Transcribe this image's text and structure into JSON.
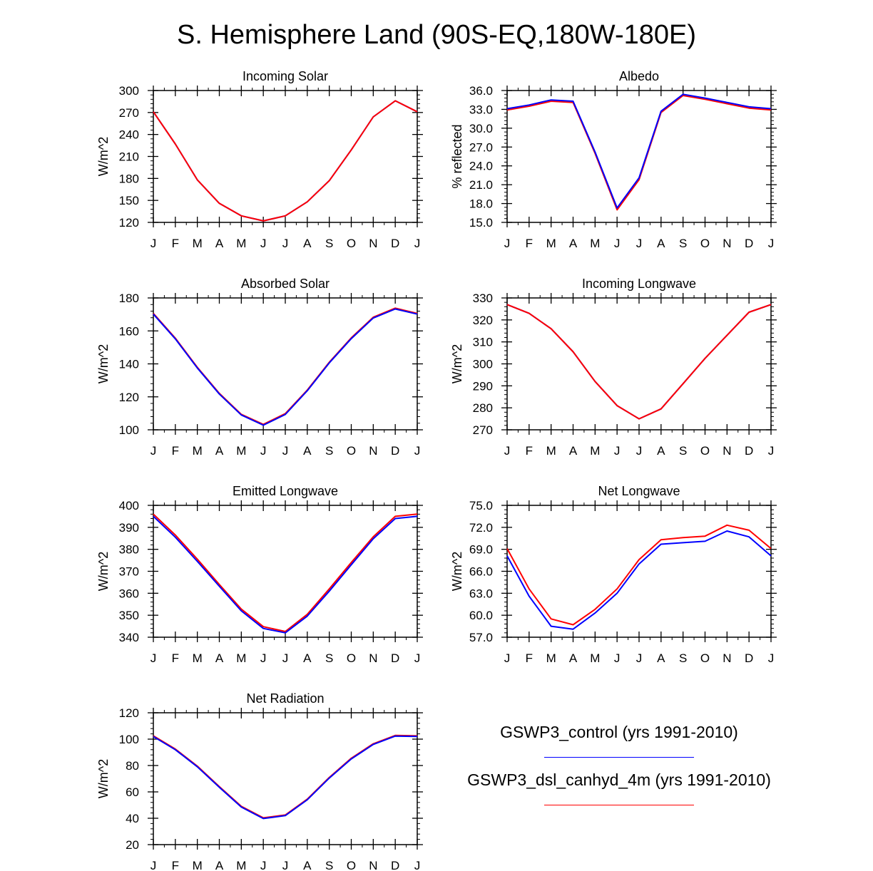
{
  "title": "S. Hemisphere Land (90S-EQ,180W-180E)",
  "colors": {
    "control": "#0000ff",
    "dsl": "#ff0000",
    "axis": "#000000"
  },
  "legend": [
    {
      "label": "GSWP3_control (yrs 1991-2010)",
      "color": "#0000ff"
    },
    {
      "label": "GSWP3_dsl_canhyd_4m (yrs 1991-2010)",
      "color": "#ff0000"
    }
  ],
  "chart_data": [
    {
      "type": "line",
      "title": "Incoming Solar",
      "ylabel": "W/m^2",
      "categories": [
        "J",
        "F",
        "M",
        "A",
        "M",
        "J",
        "J",
        "A",
        "S",
        "O",
        "N",
        "D",
        "J"
      ],
      "ylim": [
        120,
        300
      ],
      "yticks": [
        "120",
        "150",
        "180",
        "210",
        "240",
        "270",
        "300"
      ],
      "series": [
        {
          "name": "GSWP3_control",
          "color": "#0000ff",
          "values": [
            271,
            227,
            178,
            146,
            129,
            122,
            129,
            148,
            177,
            219,
            264,
            286,
            271
          ]
        },
        {
          "name": "GSWP3_dsl_canhyd_4m",
          "color": "#ff0000",
          "values": [
            271,
            227,
            178,
            146,
            129,
            122,
            129,
            148,
            177,
            219,
            264,
            286,
            271
          ]
        }
      ]
    },
    {
      "type": "line",
      "title": "Albedo",
      "ylabel": "% reflected",
      "categories": [
        "J",
        "F",
        "M",
        "A",
        "M",
        "J",
        "J",
        "A",
        "S",
        "O",
        "N",
        "D",
        "J"
      ],
      "ylim": [
        15,
        36
      ],
      "yticks": [
        "15.0",
        "18.0",
        "21.0",
        "24.0",
        "27.0",
        "30.0",
        "33.0",
        "36.0"
      ],
      "series": [
        {
          "name": "GSWP3_dsl_canhyd_4m",
          "color": "#ff0000",
          "values": [
            32.9,
            33.5,
            34.3,
            34.1,
            26.0,
            17.0,
            21.8,
            32.5,
            35.2,
            34.6,
            33.9,
            33.2,
            32.9
          ]
        },
        {
          "name": "GSWP3_control",
          "color": "#0000ff",
          "values": [
            33.1,
            33.7,
            34.5,
            34.3,
            26.2,
            17.3,
            22.1,
            32.7,
            35.4,
            34.8,
            34.1,
            33.4,
            33.1
          ]
        }
      ]
    },
    {
      "type": "line",
      "title": "Absorbed Solar",
      "ylabel": "W/m^2",
      "categories": [
        "J",
        "F",
        "M",
        "A",
        "M",
        "J",
        "J",
        "A",
        "S",
        "O",
        "N",
        "D",
        "J"
      ],
      "ylim": [
        100,
        180
      ],
      "yticks": [
        "100",
        "120",
        "140",
        "160",
        "180"
      ],
      "series": [
        {
          "name": "GSWP3_dsl_canhyd_4m",
          "color": "#ff0000",
          "values": [
            170.6,
            155.6,
            137.9,
            122.1,
            109.4,
            103.3,
            109.8,
            124.1,
            141.0,
            155.8,
            168.3,
            173.8,
            170.6
          ]
        },
        {
          "name": "GSWP3_control",
          "color": "#0000ff",
          "values": [
            170.2,
            155.2,
            137.5,
            121.7,
            109.0,
            102.8,
            109.3,
            123.7,
            140.6,
            155.3,
            167.8,
            173.3,
            170.2
          ]
        }
      ]
    },
    {
      "type": "line",
      "title": "Incoming Longwave",
      "ylabel": "W/m^2",
      "categories": [
        "J",
        "F",
        "M",
        "A",
        "M",
        "J",
        "J",
        "A",
        "S",
        "O",
        "N",
        "D",
        "J"
      ],
      "ylim": [
        270,
        330
      ],
      "yticks": [
        "270",
        "280",
        "290",
        "300",
        "310",
        "320",
        "330"
      ],
      "series": [
        {
          "name": "GSWP3_control",
          "color": "#0000ff",
          "values": [
            327,
            323,
            316,
            305.5,
            292,
            281,
            275,
            279.5,
            291,
            302.5,
            313,
            323.5,
            327
          ]
        },
        {
          "name": "GSWP3_dsl_canhyd_4m",
          "color": "#ff0000",
          "values": [
            327,
            323,
            316,
            305.5,
            292,
            281,
            275,
            279.5,
            291,
            302.5,
            313,
            323.5,
            327
          ]
        }
      ]
    },
    {
      "type": "line",
      "title": "Emitted Longwave",
      "ylabel": "W/m^2",
      "categories": [
        "J",
        "F",
        "M",
        "A",
        "M",
        "J",
        "J",
        "A",
        "S",
        "O",
        "N",
        "D",
        "J"
      ],
      "ylim": [
        340,
        400
      ],
      "yticks": [
        "340",
        "350",
        "360",
        "370",
        "380",
        "390",
        "400"
      ],
      "series": [
        {
          "name": "GSWP3_dsl_canhyd_4m",
          "color": "#ff0000",
          "values": [
            396,
            386.5,
            375.5,
            364,
            352.8,
            344.8,
            342.6,
            350.4,
            362,
            374,
            385.7,
            395,
            396
          ]
        },
        {
          "name": "GSWP3_control",
          "color": "#0000ff",
          "values": [
            395,
            385.5,
            374.5,
            363.2,
            352,
            344,
            342,
            349.6,
            361,
            373,
            384.8,
            394,
            395
          ]
        }
      ]
    },
    {
      "type": "line",
      "title": "Net Longwave",
      "ylabel": "W/m^2",
      "categories": [
        "J",
        "F",
        "M",
        "A",
        "M",
        "J",
        "J",
        "A",
        "S",
        "O",
        "N",
        "D",
        "J"
      ],
      "ylim": [
        57,
        75
      ],
      "yticks": [
        "57.0",
        "60.0",
        "63.0",
        "66.0",
        "69.0",
        "72.0",
        "75.0"
      ],
      "series": [
        {
          "name": "GSWP3_dsl_canhyd_4m",
          "color": "#ff0000",
          "values": [
            69.1,
            63.6,
            59.5,
            58.7,
            60.8,
            63.6,
            67.6,
            70.3,
            70.6,
            70.8,
            72.3,
            71.6,
            69.1
          ]
        },
        {
          "name": "GSWP3_control",
          "color": "#0000ff",
          "values": [
            68.1,
            62.6,
            58.5,
            58.1,
            60.3,
            63.0,
            67.0,
            69.7,
            69.9,
            70.1,
            71.5,
            70.7,
            68.1
          ]
        }
      ]
    },
    {
      "type": "line",
      "title": "Net Radiation",
      "ylabel": "W/m^2",
      "categories": [
        "J",
        "F",
        "M",
        "A",
        "M",
        "J",
        "J",
        "A",
        "S",
        "O",
        "N",
        "D",
        "J"
      ],
      "ylim": [
        20,
        120
      ],
      "yticks": [
        "20",
        "40",
        "60",
        "80",
        "100",
        "120"
      ],
      "series": [
        {
          "name": "GSWP3_dsl_canhyd_4m",
          "color": "#ff0000",
          "values": [
            102.5,
            92.5,
            79.5,
            64,
            49,
            40.3,
            42.5,
            54.5,
            71,
            85.5,
            96.5,
            102.8,
            102.5
          ]
        },
        {
          "name": "GSWP3_control",
          "color": "#0000ff",
          "values": [
            102,
            92,
            79,
            63.5,
            48.5,
            39.8,
            42,
            54,
            70.5,
            85,
            96,
            102.3,
            102
          ]
        }
      ]
    }
  ]
}
